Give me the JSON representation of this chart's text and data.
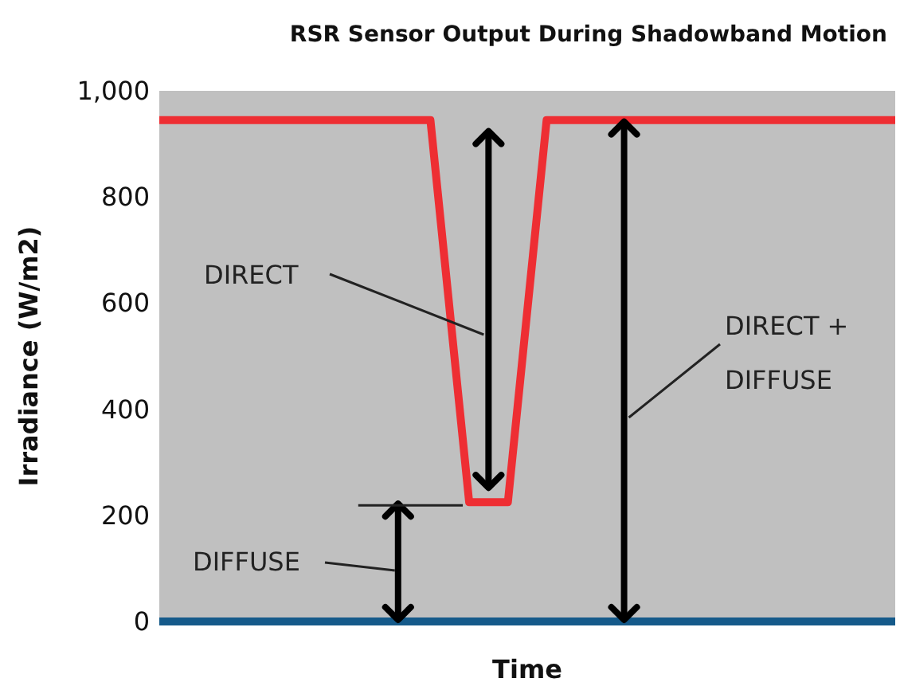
{
  "chart_data": {
    "type": "line",
    "title": "RSR Sensor Output During Shadowband Motion",
    "xlabel": "Time",
    "ylabel": "Irradiance (W/m2)",
    "categories": [
      null,
      null,
      null,
      null,
      null,
      null,
      null,
      null,
      null,
      null,
      null,
      null,
      null,
      null,
      null,
      null,
      null,
      null,
      null,
      null
    ],
    "series": [
      {
        "color": "#ee2e33",
        "values": [
          945,
          945,
          945,
          945,
          945,
          945,
          945,
          945,
          225,
          225,
          945,
          945,
          945,
          945,
          945,
          945,
          945,
          945,
          945,
          945
        ]
      },
      {
        "color": "#155a8a",
        "values": [
          0,
          0,
          0,
          0,
          0,
          0,
          0,
          0,
          0,
          0,
          0,
          0,
          0,
          0,
          0,
          0,
          0,
          0,
          0,
          0
        ]
      }
    ],
    "ylim": [
      0,
      1000
    ],
    "yticks": [
      0,
      200,
      400,
      600,
      800,
      {
        "value": 1000,
        "label": "1,000"
      }
    ],
    "annotations": [
      "DIRECT",
      "DIFFUSE",
      "DIRECT +\nDIFFUSE"
    ],
    "grid": false,
    "marker": "none",
    "tick_labels": "y"
  }
}
